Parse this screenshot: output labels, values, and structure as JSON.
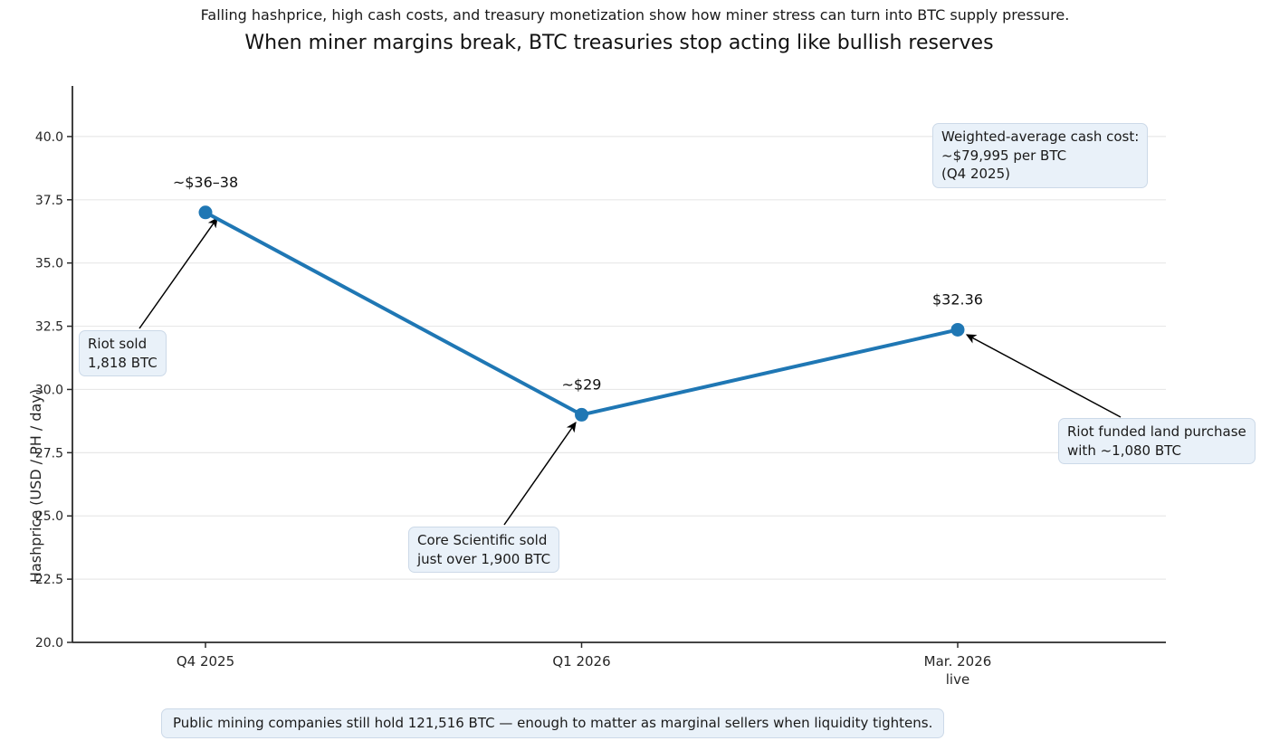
{
  "header": {
    "supertitle": "Falling hashprice, high cash costs, and treasury monetization show how miner stress can turn into BTC supply pressure.",
    "title": "When miner margins break, BTC treasuries stop acting like bullish reserves"
  },
  "chart_data": {
    "type": "line",
    "title": "When miner margins break, BTC treasuries stop acting like bullish reserves",
    "xlabel": "",
    "ylabel": "Hashprice (USD / PH / day)",
    "categories": [
      "Q4 2025",
      "Q1 2026",
      "Mar. 2026"
    ],
    "category_sublabels": [
      "",
      "",
      "live"
    ],
    "series": [
      {
        "name": "Hashprice",
        "values": [
          37.0,
          29.0,
          32.36
        ]
      }
    ],
    "point_labels": [
      "~$36–38",
      "~$29",
      "$32.36"
    ],
    "yticks": [
      "20.0",
      "22.5",
      "25.0",
      "27.5",
      "30.0",
      "32.5",
      "35.0",
      "37.5",
      "40.0"
    ],
    "ylim": [
      20,
      42
    ],
    "grid": "horizontal-only",
    "legend": "none",
    "colors": {
      "line": "#1f77b4",
      "marker": "#1f77b4",
      "grid": "#e8e8e8",
      "spine": "#2b2b2b",
      "tick_label": "#262626",
      "arrow": "#000000",
      "annotation_bg": "#e9f1f9",
      "annotation_border": "#ccd9e8"
    }
  },
  "annotations": [
    {
      "id": "riot-sold",
      "text": "Riot sold\n1,818 BTC"
    },
    {
      "id": "core-scientific",
      "text": "Core Scientific sold\njust over 1,900 BTC"
    },
    {
      "id": "riot-funded",
      "text": "Riot funded land purchase\nwith ~1,080 BTC"
    },
    {
      "id": "cash-cost",
      "text": "Weighted-average cash cost:\n~$79,995 per BTC\n(Q4 2025)"
    },
    {
      "id": "bottom-note",
      "text": "Public mining companies still hold 121,516 BTC — enough to matter as marginal sellers when liquidity tightens."
    }
  ]
}
